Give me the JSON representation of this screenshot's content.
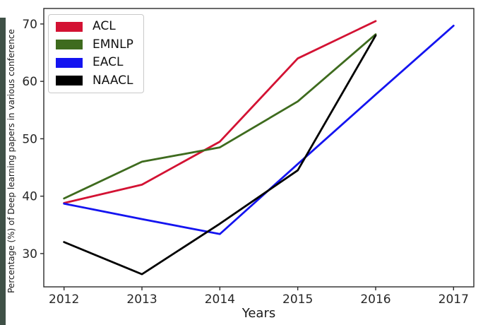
{
  "chart_data": {
    "type": "line",
    "title": "",
    "xlabel": "Years",
    "ylabel": "Percentage (%) of Deep learning papers in various conference",
    "x_ticks": [
      2012,
      2013,
      2014,
      2015,
      2016,
      2017
    ],
    "y_ticks": [
      30,
      40,
      50,
      60,
      70
    ],
    "xlim": [
      2011.74,
      2017.26
    ],
    "ylim": [
      24.2,
      72.7
    ],
    "grid": false,
    "legend_position": "upper-left",
    "series": [
      {
        "name": "ACL",
        "color": "#d31233",
        "x": [
          2012,
          2013,
          2014,
          2015,
          2016
        ],
        "values": [
          38.8,
          42.0,
          49.5,
          64.0,
          70.5
        ]
      },
      {
        "name": "EMNLP",
        "color": "#3e6b1e",
        "x": [
          2012,
          2013,
          2014,
          2015,
          2016
        ],
        "values": [
          39.6,
          46.0,
          48.5,
          56.5,
          68.2
        ]
      },
      {
        "name": "EACL",
        "color": "#1414f0",
        "x": [
          2012,
          2013,
          2014,
          2015,
          2016,
          2017
        ],
        "values": [
          38.7,
          36.0,
          33.4,
          45.6,
          57.7,
          69.7
        ]
      },
      {
        "name": "NAACL",
        "color": "#000000",
        "x": [
          2012,
          2013,
          2014,
          2015,
          2016
        ],
        "values": [
          32.0,
          26.4,
          35.2,
          44.5,
          68.0
        ]
      }
    ]
  }
}
